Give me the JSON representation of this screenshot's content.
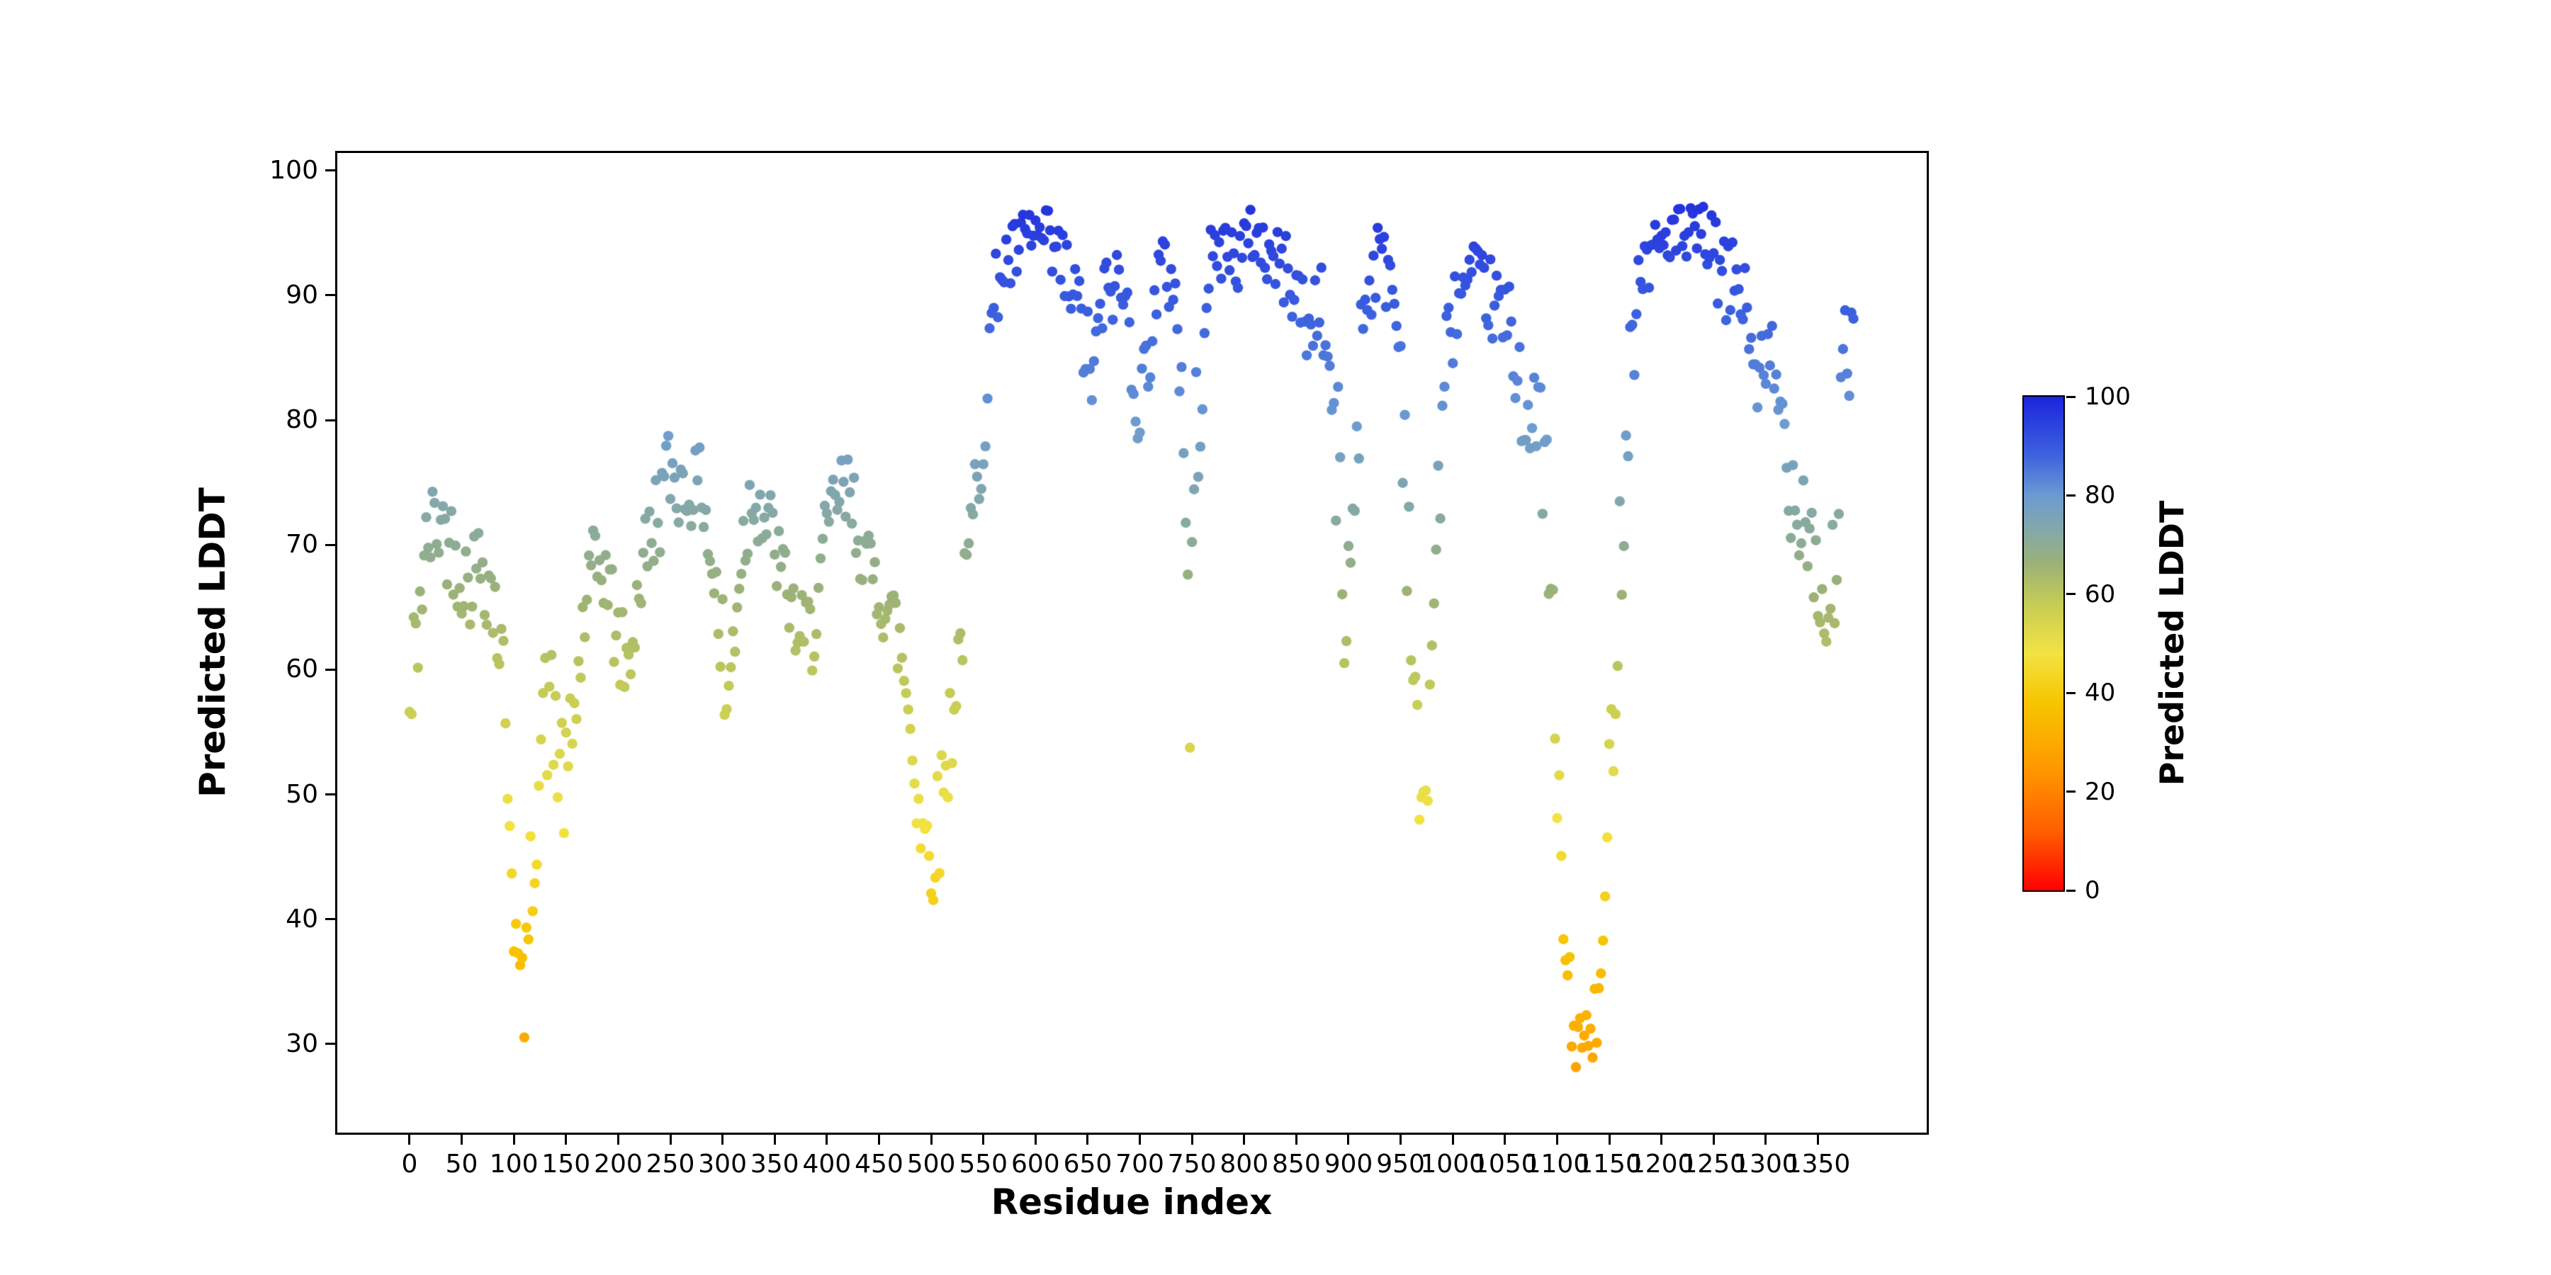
{
  "chart_data": {
    "type": "scatter",
    "title": "",
    "xlabel": "Residue index",
    "ylabel": "Predicted LDDT",
    "xlim": [
      -69.25,
      1454.25
    ],
    "ylim": [
      22.9,
      101.4
    ],
    "x_ticks": [
      0,
      50,
      100,
      150,
      200,
      250,
      300,
      350,
      400,
      450,
      500,
      550,
      600,
      650,
      700,
      750,
      800,
      850,
      900,
      950,
      1000,
      1050,
      1100,
      1150,
      1200,
      1250,
      1300,
      1350
    ],
    "y_ticks": [
      30,
      40,
      50,
      60,
      70,
      80,
      90,
      100
    ],
    "grid": false,
    "legend": "none",
    "colorbar": {
      "label": "Predicted LDDT",
      "ticks": [
        0,
        20,
        40,
        60,
        80,
        100
      ],
      "min": 0,
      "max": 100
    },
    "colormap": [
      {
        "v": 0,
        "c": "#ff0000"
      },
      {
        "v": 12,
        "c": "#ff5f00"
      },
      {
        "v": 25,
        "c": "#ff9900"
      },
      {
        "v": 38,
        "c": "#f7c500"
      },
      {
        "v": 48,
        "c": "#f2e343"
      },
      {
        "v": 58,
        "c": "#c6cc55"
      },
      {
        "v": 66,
        "c": "#9cb277"
      },
      {
        "v": 73,
        "c": "#84a8a8"
      },
      {
        "v": 80,
        "c": "#6b9bd2"
      },
      {
        "v": 88,
        "c": "#3d63de"
      },
      {
        "v": 100,
        "c": "#1c24dd"
      }
    ],
    "marker": {
      "shape": "circle",
      "radius_px": 7.2
    },
    "sampling": {
      "x_start": 0,
      "x_end": 1385,
      "x_step": 2,
      "seed": 42,
      "y_clamp": [
        26.2,
        97.8
      ]
    },
    "profile": [
      [
        0,
        55,
        8
      ],
      [
        10,
        66,
        5
      ],
      [
        20,
        71,
        4
      ],
      [
        30,
        72,
        4
      ],
      [
        40,
        70,
        4
      ],
      [
        55,
        67,
        4
      ],
      [
        70,
        69,
        4
      ],
      [
        85,
        64,
        6
      ],
      [
        95,
        52,
        6
      ],
      [
        103,
        36,
        5
      ],
      [
        110,
        33,
        3
      ],
      [
        118,
        45,
        6
      ],
      [
        128,
        57,
        5
      ],
      [
        140,
        55,
        7
      ],
      [
        150,
        50,
        5
      ],
      [
        160,
        58,
        6
      ],
      [
        170,
        66,
        4
      ],
      [
        185,
        69,
        4
      ],
      [
        200,
        62,
        4
      ],
      [
        210,
        60,
        3
      ],
      [
        220,
        67,
        4
      ],
      [
        235,
        72,
        4
      ],
      [
        250,
        76,
        4
      ],
      [
        265,
        74,
        3
      ],
      [
        280,
        75,
        3
      ],
      [
        295,
        65,
        6
      ],
      [
        305,
        56,
        7
      ],
      [
        315,
        68,
        5
      ],
      [
        330,
        75,
        4
      ],
      [
        345,
        71,
        4
      ],
      [
        360,
        67,
        3
      ],
      [
        375,
        62,
        4
      ],
      [
        385,
        63,
        4
      ],
      [
        395,
        68,
        4
      ],
      [
        410,
        74,
        4
      ],
      [
        425,
        73,
        4
      ],
      [
        440,
        68,
        3
      ],
      [
        455,
        66,
        4
      ],
      [
        470,
        62,
        4
      ],
      [
        480,
        56,
        5
      ],
      [
        490,
        48,
        5
      ],
      [
        500,
        45,
        4
      ],
      [
        508,
        48,
        5
      ],
      [
        515,
        53,
        5
      ],
      [
        525,
        60,
        4
      ],
      [
        535,
        68,
        4
      ],
      [
        545,
        76,
        5
      ],
      [
        555,
        85,
        5
      ],
      [
        565,
        92,
        3
      ],
      [
        580,
        93,
        3
      ],
      [
        595,
        95,
        2.5
      ],
      [
        610,
        94,
        3
      ],
      [
        625,
        92,
        4
      ],
      [
        640,
        89,
        4
      ],
      [
        655,
        83,
        4
      ],
      [
        665,
        90,
        3
      ],
      [
        680,
        91,
        3
      ],
      [
        692,
        87,
        5
      ],
      [
        700,
        80,
        4
      ],
      [
        708,
        86,
        4
      ],
      [
        720,
        92,
        3
      ],
      [
        735,
        91,
        3
      ],
      [
        743,
        75,
        10
      ],
      [
        748,
        60,
        8
      ],
      [
        755,
        80,
        8
      ],
      [
        765,
        92,
        3
      ],
      [
        780,
        94,
        2.5
      ],
      [
        795,
        93,
        3
      ],
      [
        810,
        95,
        2.5
      ],
      [
        825,
        93,
        3
      ],
      [
        840,
        92,
        3
      ],
      [
        852,
        90,
        3
      ],
      [
        862,
        87,
        4
      ],
      [
        872,
        90,
        3
      ],
      [
        880,
        85,
        5
      ],
      [
        890,
        75,
        8
      ],
      [
        898,
        62,
        8
      ],
      [
        905,
        75,
        8
      ],
      [
        915,
        90,
        4
      ],
      [
        928,
        93,
        3
      ],
      [
        940,
        92,
        4
      ],
      [
        950,
        85,
        6
      ],
      [
        958,
        70,
        8
      ],
      [
        966,
        52,
        6
      ],
      [
        972,
        47,
        4
      ],
      [
        978,
        58,
        6
      ],
      [
        985,
        72,
        6
      ],
      [
        995,
        86,
        4
      ],
      [
        1005,
        90,
        3
      ],
      [
        1020,
        91,
        3
      ],
      [
        1035,
        90,
        3
      ],
      [
        1048,
        88,
        4
      ],
      [
        1058,
        86,
        5
      ],
      [
        1068,
        82,
        5
      ],
      [
        1076,
        78,
        5
      ],
      [
        1085,
        80,
        6
      ],
      [
        1092,
        70,
        8
      ],
      [
        1100,
        50,
        8
      ],
      [
        1108,
        37,
        4
      ],
      [
        1115,
        31,
        3
      ],
      [
        1125,
        30,
        3
      ],
      [
        1135,
        31,
        3
      ],
      [
        1142,
        34,
        4
      ],
      [
        1148,
        45,
        6
      ],
      [
        1155,
        60,
        6
      ],
      [
        1162,
        72,
        6
      ],
      [
        1170,
        85,
        5
      ],
      [
        1180,
        92,
        3
      ],
      [
        1195,
        94,
        2.5
      ],
      [
        1210,
        95,
        2.5
      ],
      [
        1225,
        94,
        3
      ],
      [
        1240,
        95,
        2.5
      ],
      [
        1252,
        93,
        3
      ],
      [
        1262,
        90,
        4
      ],
      [
        1272,
        92,
        3
      ],
      [
        1282,
        88,
        4
      ],
      [
        1290,
        85,
        5
      ],
      [
        1298,
        82,
        5
      ],
      [
        1306,
        84,
        5
      ],
      [
        1315,
        80,
        6
      ],
      [
        1322,
        76,
        5
      ],
      [
        1330,
        73,
        4
      ],
      [
        1338,
        74,
        5
      ],
      [
        1345,
        70,
        5
      ],
      [
        1352,
        66,
        5
      ],
      [
        1360,
        63,
        5
      ],
      [
        1368,
        72,
        8
      ],
      [
        1375,
        82,
        7
      ],
      [
        1382,
        87,
        5
      ]
    ]
  },
  "colors": {
    "background": "#ffffff",
    "axis": "#000000",
    "text": "#000000"
  }
}
